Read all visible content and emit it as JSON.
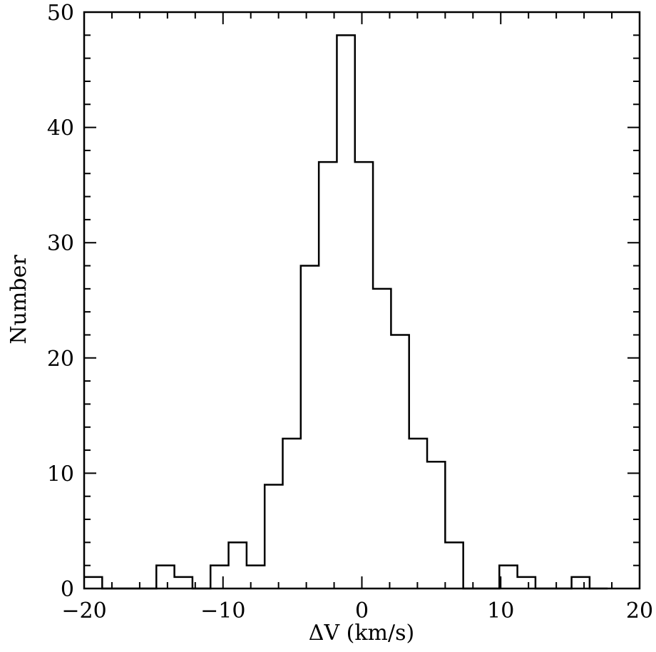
{
  "chart_data": {
    "type": "bar",
    "histogram": true,
    "bin_width": 1.3,
    "bins": [
      {
        "left": -20.0,
        "count": 1
      },
      {
        "left": -18.7,
        "count": 0
      },
      {
        "left": -17.4,
        "count": 0
      },
      {
        "left": -16.1,
        "count": 0
      },
      {
        "left": -14.8,
        "count": 2
      },
      {
        "left": -13.5,
        "count": 1
      },
      {
        "left": -12.2,
        "count": 0
      },
      {
        "left": -10.9,
        "count": 2
      },
      {
        "left": -9.6,
        "count": 4
      },
      {
        "left": -8.3,
        "count": 2
      },
      {
        "left": -7.0,
        "count": 9
      },
      {
        "left": -5.7,
        "count": 13
      },
      {
        "left": -4.4,
        "count": 28
      },
      {
        "left": -3.1,
        "count": 37
      },
      {
        "left": -1.8,
        "count": 48
      },
      {
        "left": -0.5,
        "count": 37
      },
      {
        "left": 0.8,
        "count": 26
      },
      {
        "left": 2.1,
        "count": 22
      },
      {
        "left": 3.4,
        "count": 13
      },
      {
        "left": 4.7,
        "count": 11
      },
      {
        "left": 6.0,
        "count": 4
      },
      {
        "left": 7.3,
        "count": 0
      },
      {
        "left": 8.6,
        "count": 0
      },
      {
        "left": 9.9,
        "count": 2
      },
      {
        "left": 11.2,
        "count": 1
      },
      {
        "left": 12.5,
        "count": 0
      },
      {
        "left": 13.8,
        "count": 0
      },
      {
        "left": 15.1,
        "count": 1
      },
      {
        "left": 16.4,
        "count": 0
      }
    ],
    "xlabel": "ΔV (km/s)",
    "ylabel": "Number",
    "xlim": [
      -20,
      20
    ],
    "ylim": [
      0,
      50
    ],
    "xticks": [
      -20,
      -10,
      0,
      10,
      20
    ],
    "xtick_labels": [
      "−20",
      "−10",
      "0",
      "10",
      "20"
    ],
    "yticks": [
      0,
      10,
      20,
      30,
      40,
      50
    ],
    "ytick_labels": [
      "0",
      "10",
      "20",
      "30",
      "40",
      "50"
    ],
    "x_minor_step": 2,
    "y_minor_step": 2,
    "grid": false,
    "line_color": "#000000"
  }
}
